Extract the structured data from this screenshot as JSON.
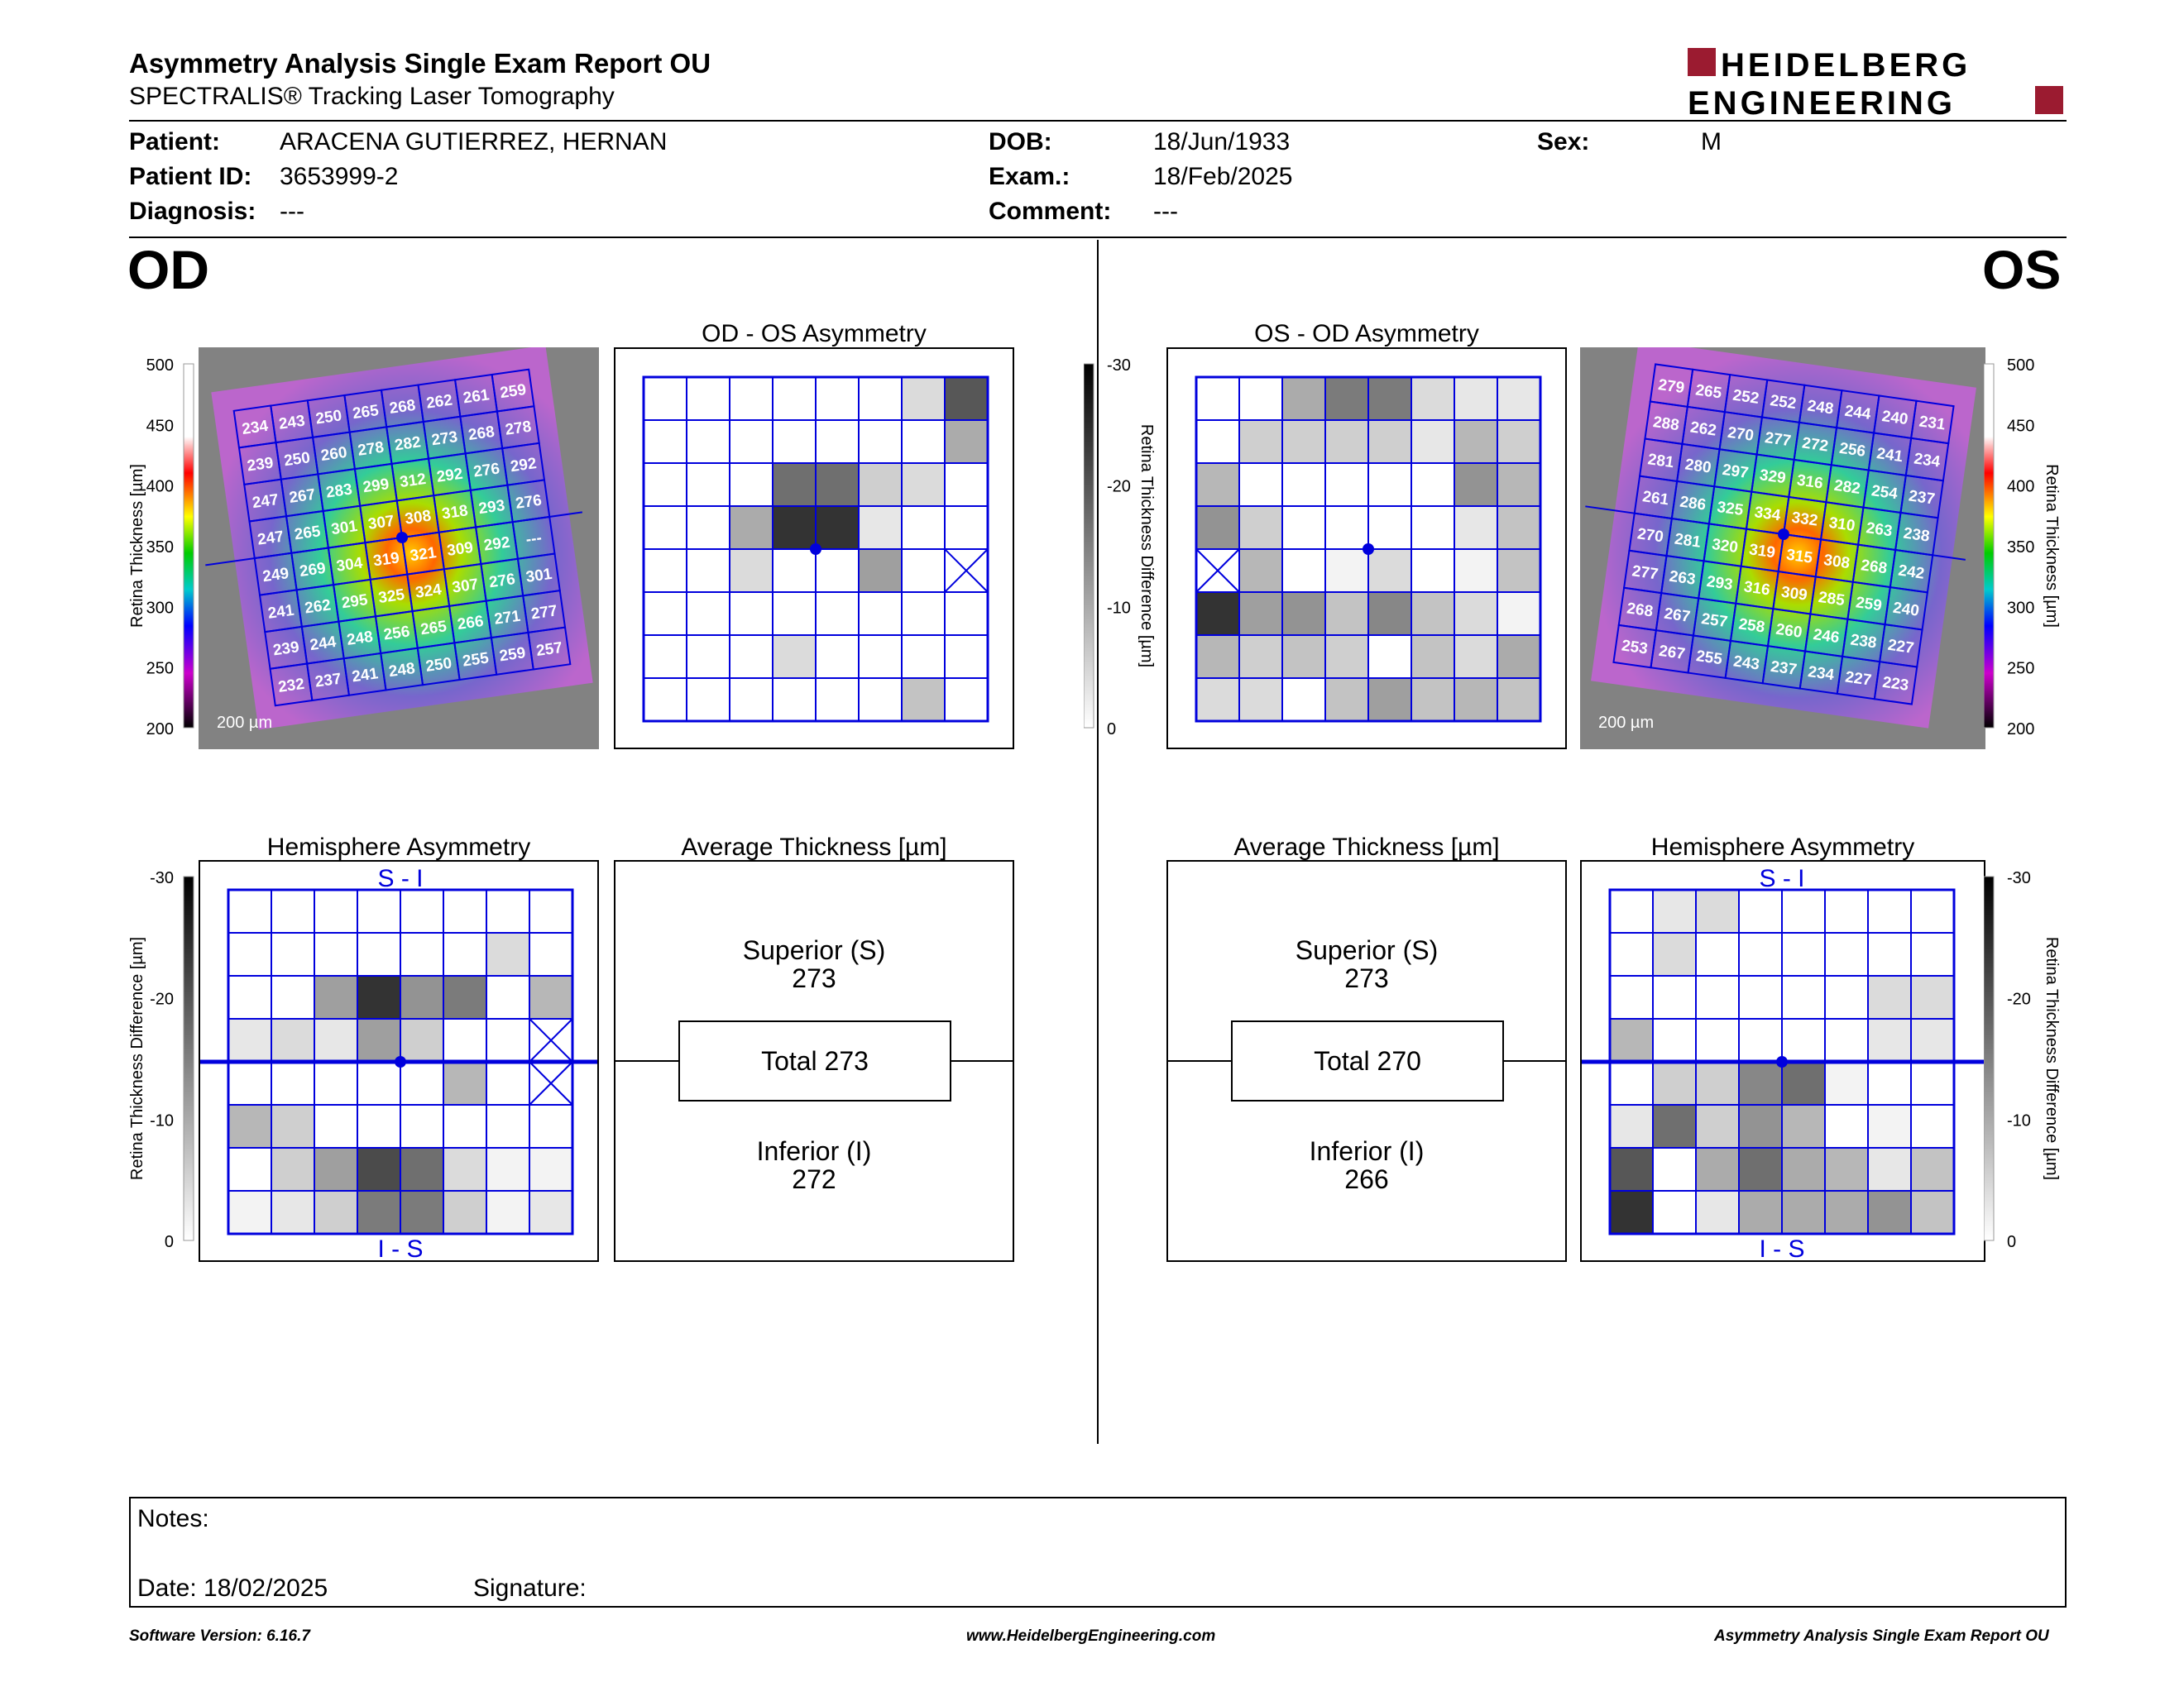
{
  "header": {
    "title": "Asymmetry Analysis Single Exam Report OU",
    "subtitle": "SPECTRALIS® Tracking Laser Tomography",
    "logo_line1": "HEIDELBERG",
    "logo_line2": "ENGINEERING"
  },
  "patient": {
    "patient_label": "Patient:",
    "patient_value": "ARACENA GUTIERREZ, HERNAN",
    "id_label": "Patient ID:",
    "id_value": "3653999-2",
    "diagnosis_label": "Diagnosis:",
    "diagnosis_value": "---",
    "dob_label": "DOB:",
    "dob_value": "18/Jun/1933",
    "exam_label": "Exam.:",
    "exam_value": "18/Feb/2025",
    "comment_label": "Comment:",
    "comment_value": "---",
    "sex_label": "Sex:",
    "sex_value": "M"
  },
  "od": {
    "eye_label": "OD",
    "asym_title": "OD - OS Asymmetry",
    "hemi_title": "Hemisphere Asymmetry",
    "avg_title": "Average Thickness [µm]",
    "hemi_top": "S - I",
    "hemi_bottom": "I - S",
    "superior_label": "Superior (S)",
    "superior_value": "273",
    "total_label": "Total 273",
    "inferior_label": "Inferior (I)",
    "inferior_value": "272",
    "scale_label": "200 µm",
    "thickness": [
      [
        "234",
        "243",
        "250",
        "265",
        "268",
        "262",
        "261",
        "259"
      ],
      [
        "239",
        "250",
        "260",
        "278",
        "282",
        "273",
        "268",
        "278"
      ],
      [
        "247",
        "267",
        "283",
        "299",
        "312",
        "292",
        "276",
        "292"
      ],
      [
        "247",
        "265",
        "301",
        "307",
        "308",
        "318",
        "293",
        "276"
      ],
      [
        "249",
        "269",
        "304",
        "319",
        "321",
        "309",
        "292",
        "---"
      ],
      [
        "241",
        "262",
        "295",
        "325",
        "324",
        "307",
        "276",
        "301"
      ],
      [
        "239",
        "244",
        "248",
        "256",
        "265",
        "266",
        "271",
        "277"
      ],
      [
        "232",
        "237",
        "241",
        "248",
        "250",
        "255",
        "259",
        "257"
      ]
    ],
    "asym_grid": [
      [
        0,
        0,
        0,
        0,
        0,
        0,
        15,
        70
      ],
      [
        0,
        0,
        0,
        0,
        0,
        0,
        0,
        35
      ],
      [
        0,
        0,
        0,
        60,
        60,
        20,
        15,
        0
      ],
      [
        0,
        0,
        35,
        85,
        85,
        10,
        0,
        0
      ],
      [
        0,
        0,
        15,
        0,
        0,
        40,
        0,
        -1
      ],
      [
        0,
        0,
        0,
        0,
        0,
        0,
        0,
        0
      ],
      [
        0,
        0,
        0,
        15,
        0,
        0,
        0,
        0
      ],
      [
        0,
        0,
        0,
        0,
        0,
        0,
        25,
        0
      ]
    ],
    "hemi_grid": [
      [
        0,
        0,
        0,
        0,
        0,
        0,
        0,
        0
      ],
      [
        0,
        0,
        0,
        0,
        0,
        0,
        15,
        0
      ],
      [
        0,
        0,
        40,
        85,
        45,
        55,
        0,
        30
      ],
      [
        10,
        15,
        10,
        40,
        20,
        0,
        0,
        -1
      ],
      [
        0,
        0,
        0,
        0,
        0,
        30,
        0,
        -1
      ],
      [
        30,
        20,
        0,
        0,
        0,
        0,
        0,
        0
      ],
      [
        0,
        20,
        40,
        75,
        60,
        15,
        5,
        5
      ],
      [
        5,
        10,
        20,
        55,
        55,
        20,
        5,
        10
      ]
    ]
  },
  "os": {
    "eye_label": "OS",
    "asym_title": "OS - OD Asymmetry",
    "hemi_title": "Hemisphere Asymmetry",
    "avg_title": "Average Thickness [µm]",
    "hemi_top": "S - I",
    "hemi_bottom": "I - S",
    "superior_label": "Superior (S)",
    "superior_value": "273",
    "total_label": "Total 270",
    "inferior_label": "Inferior (I)",
    "inferior_value": "266",
    "scale_label": "200 µm",
    "thickness": [
      [
        "279",
        "265",
        "252",
        "252",
        "248",
        "244",
        "240",
        "231"
      ],
      [
        "288",
        "262",
        "270",
        "277",
        "272",
        "256",
        "241",
        "234"
      ],
      [
        "281",
        "280",
        "297",
        "329",
        "316",
        "282",
        "254",
        "237"
      ],
      [
        "261",
        "286",
        "325",
        "334",
        "332",
        "310",
        "263",
        "238"
      ],
      [
        "270",
        "281",
        "320",
        "319",
        "315",
        "308",
        "268",
        "242"
      ],
      [
        "277",
        "263",
        "293",
        "316",
        "309",
        "285",
        "259",
        "240"
      ],
      [
        "268",
        "267",
        "257",
        "258",
        "260",
        "246",
        "238",
        "227"
      ],
      [
        "253",
        "267",
        "255",
        "243",
        "237",
        "234",
        "227",
        "223"
      ]
    ],
    "asym_grid": [
      [
        0,
        0,
        35,
        55,
        55,
        15,
        10,
        10
      ],
      [
        0,
        20,
        20,
        20,
        20,
        10,
        30,
        20
      ],
      [
        30,
        0,
        0,
        0,
        0,
        0,
        45,
        30
      ],
      [
        45,
        20,
        0,
        0,
        0,
        0,
        10,
        25
      ],
      [
        -1,
        30,
        0,
        5,
        15,
        0,
        5,
        25
      ],
      [
        85,
        40,
        45,
        25,
        50,
        25,
        15,
        5
      ],
      [
        30,
        20,
        25,
        20,
        0,
        25,
        15,
        35
      ],
      [
        15,
        15,
        0,
        25,
        40,
        25,
        30,
        25
      ]
    ],
    "hemi_grid": [
      [
        0,
        10,
        15,
        0,
        0,
        0,
        0,
        0
      ],
      [
        0,
        15,
        0,
        0,
        0,
        0,
        0,
        0
      ],
      [
        0,
        0,
        0,
        0,
        0,
        0,
        15,
        15
      ],
      [
        30,
        0,
        0,
        0,
        0,
        0,
        10,
        10
      ],
      [
        0,
        20,
        20,
        50,
        60,
        5,
        0,
        0
      ],
      [
        10,
        60,
        20,
        45,
        30,
        0,
        5,
        0
      ],
      [
        70,
        0,
        35,
        60,
        35,
        30,
        10,
        25
      ],
      [
        85,
        0,
        10,
        35,
        35,
        35,
        45,
        25
      ]
    ]
  },
  "thickness_scale": {
    "ticks": [
      "500",
      "450",
      "400",
      "350",
      "300",
      "250",
      "200"
    ],
    "label": "Retina  Thickness [µm]"
  },
  "diff_scale": {
    "ticks": [
      "-30",
      "-20",
      "-10",
      "0"
    ],
    "label": "Retina Thickness Difference [µm]"
  },
  "notes": {
    "notes_label": "Notes:",
    "date_label": "Date: 18/02/2025",
    "signature_label": "Signature:"
  },
  "footer": {
    "left": "Software Version: 6.16.7",
    "center": "www.HeidelbergEngineering.com",
    "right": "Asymmetry Analysis Single Exam Report OU"
  },
  "colors": {
    "grid_blue": "#0000dd",
    "brand_red": "#9b1b30"
  }
}
